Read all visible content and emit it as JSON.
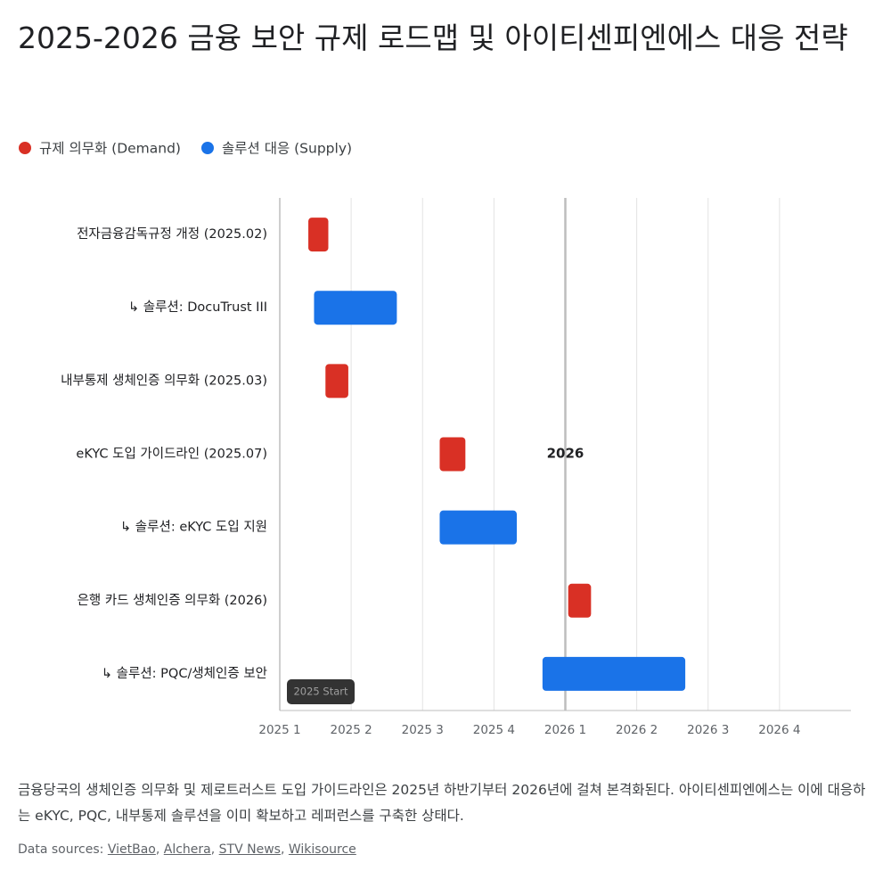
{
  "chart_data": {
    "type": "gantt",
    "title": "2025-2026 금융 보안 규제 로드맵 및 아이티센피엔에스 대응 전략",
    "categories": [
      "전자금융감독규정 개정 (2025.02)",
      "↳ 솔루션: DocuTrust III",
      "내부통제 생체인증 의무화 (2025.03)",
      "eKYC 도입 가이드라인 (2025.07)",
      "↳ 솔루션: eKYC 도입 지원",
      "은행 카드 생체인증 의무화 (2026)",
      "↳ 솔루션: PQC/생체인증 보안"
    ],
    "series": [
      {
        "name": "규제 의무화 (Demand)",
        "color": "#d93025",
        "start": [
          2025.1,
          null,
          2025.16,
          2025.56,
          null,
          2026.01,
          null
        ],
        "end": [
          2025.17,
          null,
          2025.24,
          2025.65,
          null,
          2026.09,
          null
        ]
      },
      {
        "name": "솔루션 대응 (Supply)",
        "color": "#1a73e8",
        "start": [
          null,
          2025.12,
          null,
          null,
          2025.56,
          null,
          2025.92
        ],
        "end": [
          null,
          2025.41,
          null,
          null,
          2025.83,
          null,
          2026.42
        ]
      }
    ],
    "xlim": [
      2025,
      2027
    ],
    "xticks": [
      {
        "value": 2025,
        "label": "2025 1"
      },
      {
        "value": 2025.25,
        "label": "2025 2"
      },
      {
        "value": 2025.5,
        "label": "2025 3"
      },
      {
        "value": 2025.75,
        "label": "2025 4"
      },
      {
        "value": 2026,
        "label": "2026 1"
      },
      {
        "value": 2026.25,
        "label": "2026 2"
      },
      {
        "value": 2026.5,
        "label": "2026 3"
      },
      {
        "value": 2026.75,
        "label": "2026 4"
      }
    ],
    "grid": true,
    "reference_line": {
      "value": 2026,
      "label": "2026"
    },
    "annotation": {
      "value": 2025,
      "label": "2025 Start"
    }
  },
  "description": "금융당국의 생체인증 의무화 및 제로트러스트 도입 가이드라인은 2025년 하반기부터 2026년에 걸쳐 본격화된다. 아이티센피엔에스는 이에 대응하는 eKYC, PQC, 내부통제 솔루션을 이미 확보하고 레퍼런스를 구축한 상태다.",
  "sources": {
    "label": "Data sources:",
    "links": [
      "VietBao",
      "Alchera",
      "STV News",
      "Wikisource"
    ]
  }
}
